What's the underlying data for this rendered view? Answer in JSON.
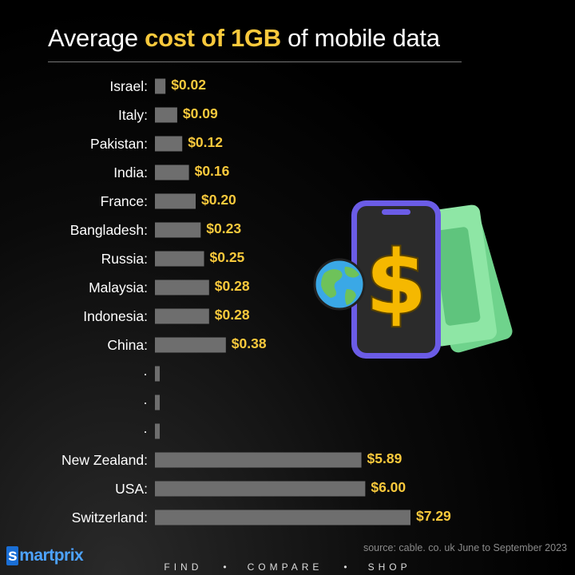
{
  "title": {
    "pre": "Average ",
    "highlight": "cost of 1GB",
    "post": " of mobile data"
  },
  "chart_data": {
    "type": "bar",
    "orientation": "horizontal",
    "title": "Average cost of 1GB of mobile data",
    "categories": [
      "Israel:",
      "Italy:",
      "Pakistan:",
      "India:",
      "France:",
      "Bangladesh:",
      "Russia:",
      "Malaysia:",
      "Indonesia:",
      "China:",
      "·",
      "·",
      "·",
      "New Zealand:",
      "USA:",
      "Switzerland:"
    ],
    "values": [
      0.02,
      0.09,
      0.12,
      0.16,
      0.2,
      0.23,
      0.25,
      0.28,
      0.28,
      0.38,
      null,
      null,
      null,
      5.89,
      6.0,
      7.29
    ],
    "value_labels": [
      "$0.02",
      "$0.09",
      "$0.12",
      "$0.16",
      "$0.20",
      "$0.23",
      "$0.25",
      "$0.28",
      "$0.28",
      "$0.38",
      "",
      "",
      "",
      "$5.89",
      "$6.00",
      "$7.29"
    ],
    "bar_color": "#6e6e6e",
    "value_color": "#f9c93c",
    "grid": false,
    "legend": "none",
    "axes_shown": false
  },
  "illustration": {
    "icons": [
      "smartphone-icon",
      "dollar-sign-icon",
      "globe-icon",
      "banknotes-icon"
    ]
  },
  "brand": {
    "logo_box": "s",
    "logo_rest": "martprix"
  },
  "source": "source: cable. co. uk June to September 2023",
  "footer": {
    "items": [
      "FIND",
      "COMPARE",
      "SHOP"
    ],
    "separator": "•"
  },
  "colors": {
    "accent": "#f9c93c",
    "bar": "#6e6e6e",
    "background": "#000000",
    "brand_blue": "#1a6fd6"
  }
}
